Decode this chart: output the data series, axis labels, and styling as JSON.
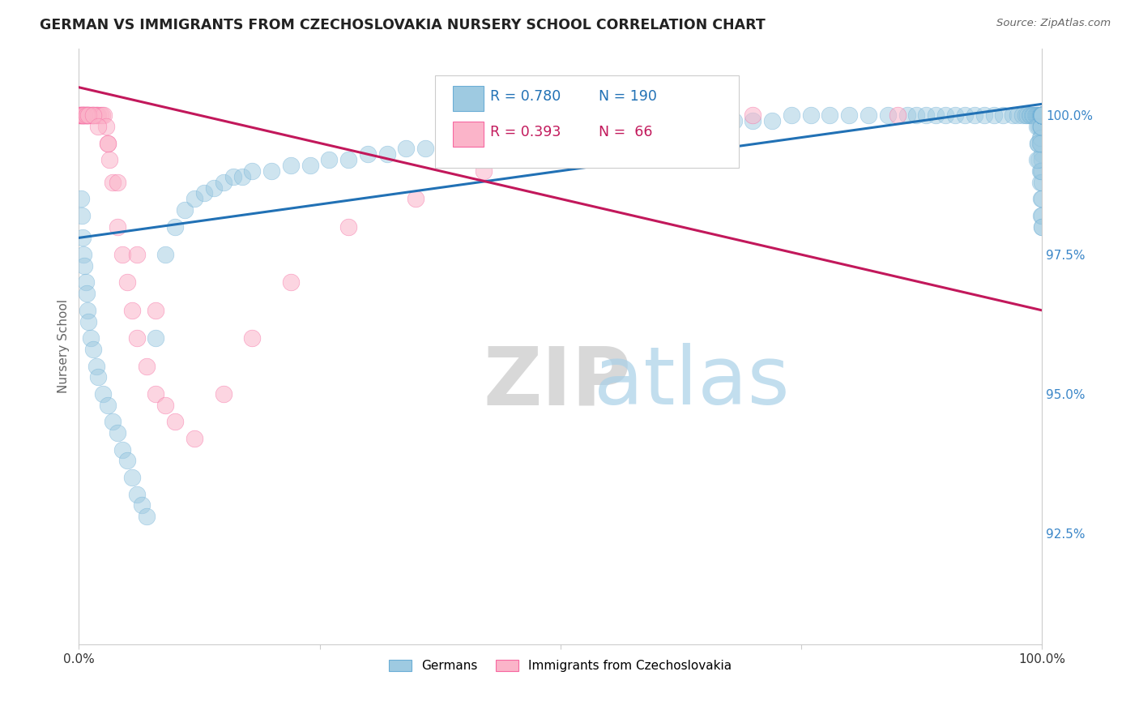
{
  "title": "GERMAN VS IMMIGRANTS FROM CZECHOSLOVAKIA NURSERY SCHOOL CORRELATION CHART",
  "source": "Source: ZipAtlas.com",
  "ylabel": "Nursery School",
  "xlim": [
    0.0,
    100.0
  ],
  "ylim": [
    90.5,
    101.2
  ],
  "yticks": [
    92.5,
    95.0,
    97.5,
    100.0
  ],
  "ytick_labels": [
    "92.5%",
    "95.0%",
    "97.5%",
    "100.0%"
  ],
  "xtick_labels": [
    "0.0%",
    "",
    "",
    "",
    "",
    "100.0%"
  ],
  "blue_color": "#9ecae1",
  "pink_color": "#fbb4c9",
  "blue_edge_color": "#6baed6",
  "pink_edge_color": "#f768a1",
  "blue_line_color": "#2171b5",
  "pink_line_color": "#c2185b",
  "R_blue": 0.78,
  "N_blue": 190,
  "R_pink": 0.393,
  "N_pink": 66,
  "legend_labels": [
    "Germans",
    "Immigrants from Czechoslovakia"
  ],
  "watermark_zip": "ZIP",
  "watermark_atlas": "atlas",
  "background_color": "#ffffff",
  "blue_line_x": [
    0.0,
    100.0
  ],
  "blue_line_y": [
    97.8,
    100.2
  ],
  "pink_line_x": [
    0.0,
    100.0
  ],
  "pink_line_y": [
    100.5,
    96.5
  ],
  "blue_x": [
    0.2,
    0.3,
    0.4,
    0.5,
    0.6,
    0.7,
    0.8,
    0.9,
    1.0,
    1.2,
    1.5,
    1.8,
    2.0,
    2.5,
    3.0,
    3.5,
    4.0,
    4.5,
    5.0,
    5.5,
    6.0,
    6.5,
    7.0,
    8.0,
    9.0,
    10.0,
    11.0,
    12.0,
    13.0,
    14.0,
    15.0,
    16.0,
    17.0,
    18.0,
    20.0,
    22.0,
    24.0,
    26.0,
    28.0,
    30.0,
    32.0,
    34.0,
    36.0,
    38.0,
    40.0,
    42.0,
    44.0,
    46.0,
    48.0,
    50.0,
    52.0,
    54.0,
    56.0,
    58.0,
    60.0,
    62.0,
    64.0,
    66.0,
    68.0,
    70.0,
    72.0,
    74.0,
    76.0,
    78.0,
    80.0,
    82.0,
    84.0,
    86.0,
    87.0,
    88.0,
    89.0,
    90.0,
    91.0,
    92.0,
    93.0,
    94.0,
    95.0,
    96.0,
    97.0,
    97.5,
    98.0,
    98.3,
    98.5,
    98.7,
    98.8,
    99.0,
    99.1,
    99.2,
    99.3,
    99.4,
    99.5,
    99.6,
    99.7,
    99.75,
    99.8,
    99.85,
    99.9,
    99.92,
    99.95,
    99.97,
    99.99,
    100.0,
    99.5,
    99.6,
    99.7,
    99.8,
    99.85,
    99.9,
    99.95,
    100.0,
    99.9,
    100.0,
    100.0,
    100.0,
    100.0,
    100.0,
    100.0,
    99.8,
    99.9,
    100.0,
    99.9,
    100.0,
    100.0,
    100.0,
    99.7,
    99.8,
    100.0,
    100.0,
    100.0,
    100.0,
    100.0,
    100.0,
    99.95,
    99.95,
    100.0,
    100.0,
    100.0,
    99.9,
    100.0,
    100.0,
    100.0,
    100.0,
    100.0,
    100.0,
    99.5,
    99.6,
    100.0,
    100.0,
    99.8,
    99.9,
    100.0,
    100.0,
    100.0,
    100.0,
    100.0,
    100.0,
    100.0,
    100.0,
    100.0,
    100.0,
    100.0,
    100.0,
    100.0,
    100.0,
    100.0,
    100.0,
    100.0,
    100.0,
    100.0,
    100.0,
    100.0,
    100.0,
    100.0,
    100.0,
    100.0,
    100.0,
    100.0,
    100.0,
    100.0,
    100.0,
    100.0,
    100.0,
    100.0,
    100.0,
    100.0,
    100.0,
    100.0
  ],
  "blue_y": [
    98.5,
    98.2,
    97.8,
    97.5,
    97.3,
    97.0,
    96.8,
    96.5,
    96.3,
    96.0,
    95.8,
    95.5,
    95.3,
    95.0,
    94.8,
    94.5,
    94.3,
    94.0,
    93.8,
    93.5,
    93.2,
    93.0,
    92.8,
    96.0,
    97.5,
    98.0,
    98.3,
    98.5,
    98.6,
    98.7,
    98.8,
    98.9,
    98.9,
    99.0,
    99.0,
    99.1,
    99.1,
    99.2,
    99.2,
    99.3,
    99.3,
    99.4,
    99.4,
    99.5,
    99.5,
    99.5,
    99.6,
    99.6,
    99.6,
    99.7,
    99.7,
    99.7,
    99.8,
    99.8,
    99.8,
    99.8,
    99.9,
    99.9,
    99.9,
    99.9,
    99.9,
    100.0,
    100.0,
    100.0,
    100.0,
    100.0,
    100.0,
    100.0,
    100.0,
    100.0,
    100.0,
    100.0,
    100.0,
    100.0,
    100.0,
    100.0,
    100.0,
    100.0,
    100.0,
    100.0,
    100.0,
    100.0,
    100.0,
    100.0,
    100.0,
    100.0,
    100.0,
    100.0,
    100.0,
    100.0,
    100.0,
    100.0,
    100.0,
    100.0,
    100.0,
    100.0,
    100.0,
    100.0,
    100.0,
    100.0,
    100.0,
    100.0,
    99.8,
    99.5,
    99.2,
    99.0,
    98.8,
    98.5,
    98.2,
    98.0,
    99.5,
    99.3,
    99.0,
    98.8,
    98.5,
    98.2,
    98.0,
    99.8,
    99.5,
    99.2,
    99.0,
    100.0,
    100.0,
    100.0,
    99.8,
    99.6,
    100.0,
    100.0,
    100.0,
    100.0,
    100.0,
    100.0,
    99.8,
    99.6,
    100.0,
    100.0,
    100.0,
    99.8,
    100.0,
    100.0,
    100.0,
    100.0,
    100.0,
    100.0,
    99.2,
    99.5,
    100.0,
    100.0,
    99.5,
    99.8,
    100.0,
    100.0,
    100.0,
    100.0,
    100.0,
    100.0,
    100.0,
    100.0,
    100.0,
    100.0,
    100.0,
    100.0,
    100.0,
    100.0,
    100.0,
    100.0,
    100.0,
    100.0,
    100.0,
    100.0,
    100.0,
    100.0,
    100.0,
    100.0,
    100.0,
    100.0,
    100.0,
    100.0,
    100.0,
    100.0,
    100.0,
    100.0,
    100.0,
    100.0,
    100.0,
    100.0,
    100.0
  ],
  "pink_x": [
    0.05,
    0.1,
    0.15,
    0.2,
    0.25,
    0.3,
    0.35,
    0.4,
    0.45,
    0.5,
    0.55,
    0.6,
    0.65,
    0.7,
    0.75,
    0.8,
    0.85,
    0.9,
    0.95,
    1.0,
    1.1,
    1.2,
    1.3,
    1.4,
    1.5,
    1.6,
    1.7,
    1.8,
    1.9,
    2.0,
    2.2,
    2.4,
    2.6,
    2.8,
    3.0,
    3.2,
    3.5,
    4.0,
    4.5,
    5.0,
    5.5,
    6.0,
    7.0,
    8.0,
    9.0,
    10.0,
    12.0,
    15.0,
    18.0,
    22.0,
    28.0,
    35.0,
    42.0,
    55.0,
    70.0,
    85.0,
    0.3,
    0.5,
    0.8,
    1.0,
    1.5,
    2.0,
    3.0,
    4.0,
    6.0,
    8.0
  ],
  "pink_y": [
    100.0,
    100.0,
    100.0,
    100.0,
    100.0,
    100.0,
    100.0,
    100.0,
    100.0,
    100.0,
    100.0,
    100.0,
    100.0,
    100.0,
    100.0,
    100.0,
    100.0,
    100.0,
    100.0,
    100.0,
    100.0,
    100.0,
    100.0,
    100.0,
    100.0,
    100.0,
    100.0,
    100.0,
    100.0,
    100.0,
    100.0,
    100.0,
    100.0,
    99.8,
    99.5,
    99.2,
    98.8,
    98.0,
    97.5,
    97.0,
    96.5,
    96.0,
    95.5,
    95.0,
    94.8,
    94.5,
    94.2,
    95.0,
    96.0,
    97.0,
    98.0,
    98.5,
    99.0,
    99.5,
    100.0,
    100.0,
    100.0,
    100.0,
    100.0,
    100.0,
    100.0,
    99.8,
    99.5,
    98.8,
    97.5,
    96.5
  ]
}
